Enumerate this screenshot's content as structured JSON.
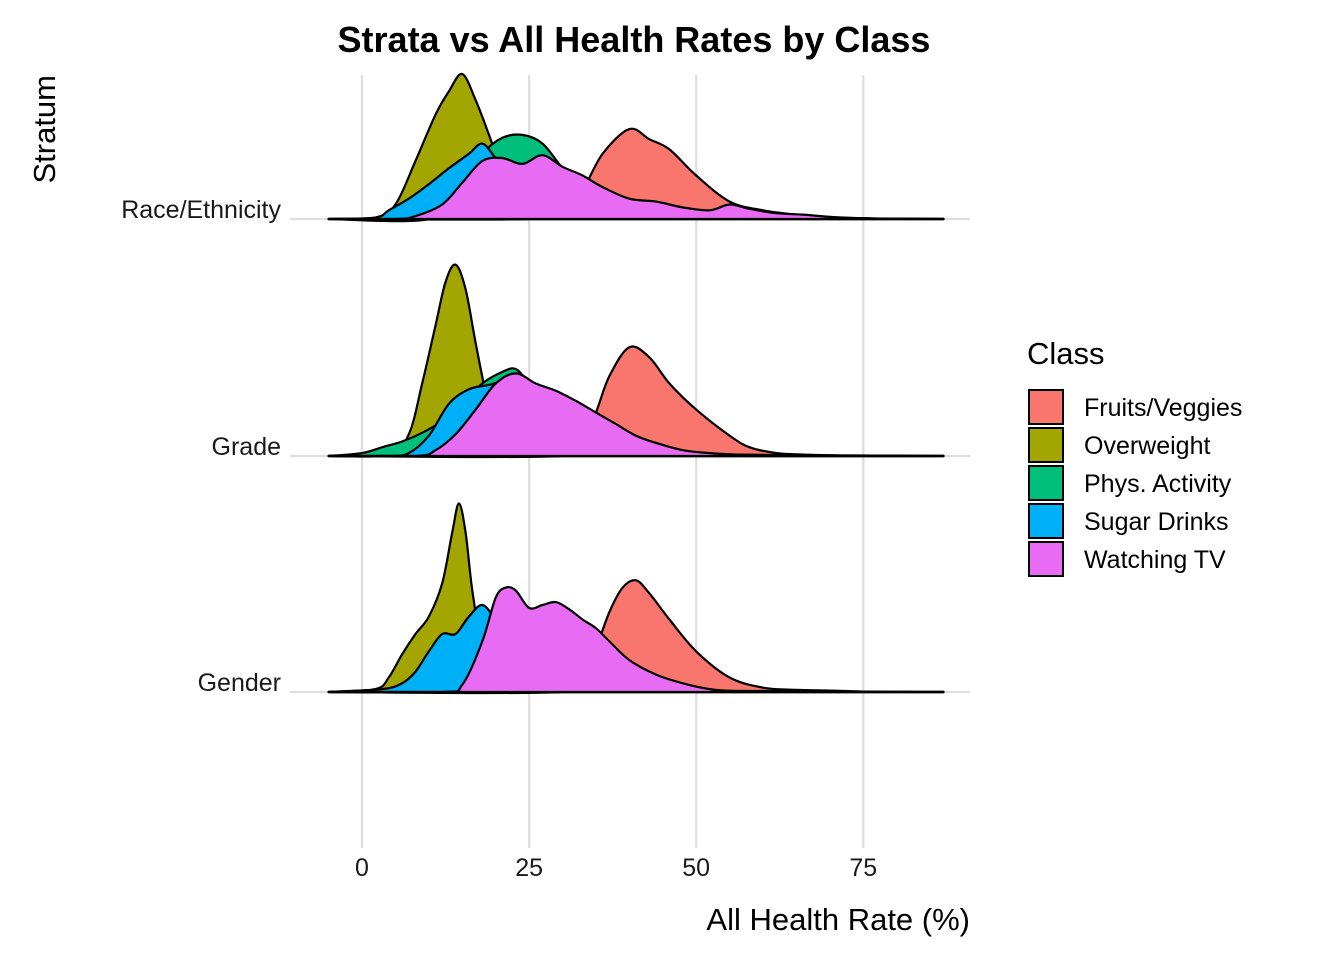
{
  "chart_data": {
    "type": "ridgeline",
    "title": "Strata vs All Health Rates by Class",
    "xlabel": "All Health Rate (%)",
    "ylabel": "Stratum",
    "xlim": [
      -5,
      87
    ],
    "x_ticks": [
      0,
      25,
      50,
      75
    ],
    "grid": true,
    "legend": {
      "title": "Class",
      "position": "right",
      "entries": [
        "Fruits/Veggies",
        "Overweight",
        "Phys. Activity",
        "Sugar Drinks",
        "Watching TV"
      ]
    },
    "colors": {
      "Fruits/Veggies": "#F8766D",
      "Overweight": "#A3A500",
      "Phys. Activity": "#00BF7D",
      "Sugar Drinks": "#00B0F6",
      "Watching TV": "#E76BF3"
    },
    "strata": [
      {
        "name": "Race/Ethnicity",
        "series": [
          {
            "name": "Fruits/Veggies",
            "x": [
              -5,
              25,
              30,
              33,
              36,
              40,
              43,
              46,
              50,
              55,
              60,
              65,
              70,
              75,
              80,
              87
            ],
            "y": [
              0,
              0,
              0.05,
              0.2,
              0.45,
              0.62,
              0.55,
              0.48,
              0.3,
              0.12,
              0.06,
              0.03,
              0.01,
              0.005,
              0,
              0
            ]
          },
          {
            "name": "Overweight",
            "x": [
              -5,
              2,
              5,
              8,
              11,
              13,
              15,
              17,
              19,
              21,
              23,
              25,
              28,
              87
            ],
            "y": [
              0,
              0.01,
              0.1,
              0.4,
              0.72,
              0.88,
              1.0,
              0.82,
              0.58,
              0.32,
              0.12,
              0.04,
              0.01,
              0
            ]
          },
          {
            "name": "Phys. Activity",
            "x": [
              -5,
              10,
              14,
              18,
              21,
              24,
              27,
              30,
              33,
              38,
              43,
              87
            ],
            "y": [
              0,
              0,
              0.2,
              0.45,
              0.56,
              0.58,
              0.52,
              0.35,
              0.2,
              0.08,
              0.02,
              0
            ]
          },
          {
            "name": "Sugar Drinks",
            "x": [
              -5,
              2,
              4,
              7,
              10,
              13,
              16,
              18,
              20,
              22,
              25,
              30,
              35,
              87
            ],
            "y": [
              0,
              0.01,
              0.06,
              0.14,
              0.24,
              0.35,
              0.45,
              0.52,
              0.42,
              0.32,
              0.18,
              0.06,
              0.02,
              0
            ]
          },
          {
            "name": "Watching TV",
            "x": [
              -5,
              5,
              8,
              12,
              15,
              18,
              21,
              24,
              27,
              30,
              33,
              36,
              40,
              44,
              48,
              52,
              55,
              58,
              62,
              66,
              70,
              75,
              80,
              87
            ],
            "y": [
              0,
              0,
              0.02,
              0.1,
              0.25,
              0.4,
              0.42,
              0.38,
              0.44,
              0.36,
              0.3,
              0.22,
              0.14,
              0.12,
              0.08,
              0.06,
              0.1,
              0.07,
              0.04,
              0.03,
              0.015,
              0.005,
              0,
              0
            ]
          }
        ]
      },
      {
        "name": "Grade",
        "series": [
          {
            "name": "Fruits/Veggies",
            "x": [
              -5,
              30,
              33,
              35,
              37,
              40,
              43,
              46,
              50,
              55,
              58,
              62,
              66,
              70,
              75,
              80,
              87
            ],
            "y": [
              0,
              0,
              0.1,
              0.3,
              0.55,
              0.75,
              0.68,
              0.5,
              0.32,
              0.14,
              0.06,
              0.02,
              0.01,
              0.005,
              0,
              0,
              0
            ]
          },
          {
            "name": "Overweight",
            "x": [
              -5,
              4,
              7,
              9,
              11,
              12.5,
              14,
              15.5,
              17,
              18.5,
              20,
              22,
              25,
              87
            ],
            "y": [
              0,
              0.01,
              0.15,
              0.5,
              0.9,
              1.2,
              1.32,
              1.15,
              0.78,
              0.44,
              0.2,
              0.06,
              0.01,
              0
            ]
          },
          {
            "name": "Phys. Activity",
            "x": [
              -5,
              0,
              3,
              6,
              9,
              12,
              15,
              18,
              21,
              23,
              25,
              28,
              32,
              36,
              40,
              87
            ],
            "y": [
              0,
              0.02,
              0.06,
              0.1,
              0.16,
              0.24,
              0.36,
              0.5,
              0.58,
              0.6,
              0.5,
              0.34,
              0.18,
              0.08,
              0.02,
              0
            ]
          },
          {
            "name": "Sugar Drinks",
            "x": [
              -5,
              4,
              7,
              10,
              13,
              16,
              19,
              22,
              25,
              28,
              32,
              36,
              40,
              87
            ],
            "y": [
              0,
              0,
              0.02,
              0.14,
              0.36,
              0.46,
              0.49,
              0.52,
              0.46,
              0.3,
              0.14,
              0.05,
              0.01,
              0
            ]
          },
          {
            "name": "Watching TV",
            "x": [
              -5,
              8,
              11,
              14,
              17,
              20,
              23,
              26,
              29,
              32,
              35,
              38,
              41,
              44,
              48,
              52,
              56,
              60,
              64,
              68,
              72,
              87
            ],
            "y": [
              0,
              0,
              0.04,
              0.15,
              0.32,
              0.5,
              0.57,
              0.5,
              0.45,
              0.38,
              0.3,
              0.22,
              0.14,
              0.09,
              0.04,
              0.02,
              0.01,
              0.005,
              0.005,
              0.002,
              0,
              0
            ]
          }
        ]
      },
      {
        "name": "Gender",
        "series": [
          {
            "name": "Fruits/Veggies",
            "x": [
              -5,
              30,
              33,
              35,
              37,
              39,
              41,
              43,
              46,
              50,
              55,
              60,
              65,
              70,
              75,
              80,
              87
            ],
            "y": [
              0,
              0,
              0.1,
              0.3,
              0.55,
              0.72,
              0.77,
              0.68,
              0.5,
              0.28,
              0.1,
              0.03,
              0.015,
              0.01,
              0.003,
              0,
              0
            ]
          },
          {
            "name": "Overweight",
            "x": [
              -5,
              2,
              4,
              6,
              8,
              10,
              12,
              13.5,
              14.5,
              15.5,
              16.5,
              18,
              20,
              22,
              87
            ],
            "y": [
              0,
              0.02,
              0.1,
              0.26,
              0.4,
              0.52,
              0.75,
              1.1,
              1.3,
              1.1,
              0.7,
              0.3,
              0.08,
              0.01,
              0
            ]
          },
          {
            "name": "Phys. Activity",
            "x": [
              -5,
              10,
              12,
              14,
              16,
              17.5,
              19,
              21,
              24,
              28,
              32,
              36,
              40,
              87
            ],
            "y": [
              0,
              0.05,
              0.2,
              0.38,
              0.52,
              0.55,
              0.5,
              0.4,
              0.28,
              0.15,
              0.06,
              0.02,
              0.005,
              0
            ]
          },
          {
            "name": "Sugar Drinks",
            "x": [
              -5,
              3,
              6,
              8,
              10,
              12,
              14,
              16,
              18,
              20,
              22,
              25,
              30,
              35,
              87
            ],
            "y": [
              0,
              0.02,
              0.06,
              0.14,
              0.28,
              0.4,
              0.4,
              0.52,
              0.6,
              0.5,
              0.38,
              0.22,
              0.08,
              0.02,
              0
            ]
          },
          {
            "name": "Watching TV",
            "x": [
              -5,
              12,
              15,
              18,
              20,
              21.5,
              23,
              25,
              27,
              29,
              31,
              33,
              35,
              37,
              40,
              44,
              48,
              52,
              56,
              60,
              64,
              68,
              72,
              87
            ],
            "y": [
              0,
              0,
              0.05,
              0.35,
              0.65,
              0.72,
              0.7,
              0.58,
              0.6,
              0.62,
              0.57,
              0.5,
              0.44,
              0.35,
              0.22,
              0.12,
              0.06,
              0.02,
              0.005,
              0.005,
              0.01,
              0.005,
              0,
              0
            ]
          }
        ]
      }
    ]
  }
}
